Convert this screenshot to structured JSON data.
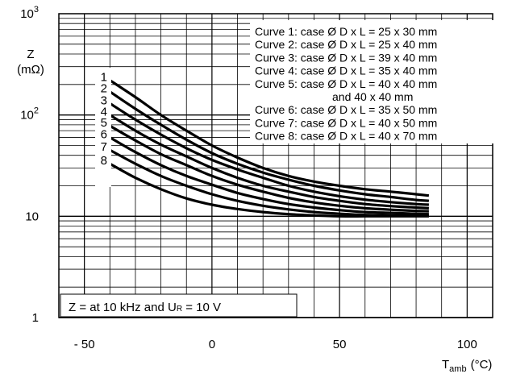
{
  "chart_data": {
    "type": "line",
    "ylabel": "Z",
    "ylabel_unit": "(mΩ)",
    "xlabel": "T",
    "xlabel_sub": "amb",
    "xlabel_unit": "(°C)",
    "y_scale": "log",
    "ylim": [
      1,
      1000
    ],
    "xlim": [
      -60,
      110
    ],
    "y_ticks": [
      {
        "value": 1,
        "base": "1",
        "exp": ""
      },
      {
        "value": 10,
        "base": "10",
        "exp": ""
      },
      {
        "value": 100,
        "base": "10",
        "exp": "2"
      },
      {
        "value": 1000,
        "base": "10",
        "exp": "3"
      }
    ],
    "x_ticks": [
      {
        "value": -50,
        "label": "- 50"
      },
      {
        "value": 0,
        "label": "0"
      },
      {
        "value": 50,
        "label": "50"
      },
      {
        "value": 100,
        "label": "100"
      }
    ],
    "grid": true,
    "x": [
      -40,
      -30,
      -20,
      -10,
      0,
      10,
      20,
      30,
      40,
      50,
      60,
      70,
      80,
      85
    ],
    "series": [
      {
        "name": "1",
        "values": [
          220,
          150,
          100,
          70,
          50,
          38,
          30,
          25,
          22,
          20,
          18.5,
          17.5,
          16.5,
          16
        ]
      },
      {
        "name": "2",
        "values": [
          170,
          115,
          80,
          57,
          42,
          33,
          27,
          23,
          20,
          18,
          16.5,
          15.5,
          14.5,
          14.2
        ]
      },
      {
        "name": "3",
        "values": [
          130,
          90,
          64,
          47,
          36,
          29,
          24,
          20,
          17.5,
          15.8,
          14.6,
          13.8,
          13.2,
          13
        ]
      },
      {
        "name": "4",
        "values": [
          100,
          70,
          51,
          39,
          30,
          24,
          20,
          17.5,
          15.5,
          14.2,
          13.2,
          12.6,
          12.2,
          12
        ]
      },
      {
        "name": "5",
        "values": [
          78,
          56,
          41,
          32,
          25,
          20.5,
          17.5,
          15.2,
          13.7,
          12.7,
          12,
          11.6,
          11.3,
          11.2
        ]
      },
      {
        "name": "6",
        "values": [
          60,
          43,
          32,
          25,
          20.5,
          17,
          14.8,
          13.2,
          12.2,
          11.5,
          11,
          10.8,
          10.6,
          10.5
        ]
      },
      {
        "name": "7",
        "values": [
          45,
          33,
          25,
          20,
          16.5,
          14.2,
          12.7,
          11.7,
          11,
          10.6,
          10.3,
          10.2,
          10.1,
          10.1
        ]
      },
      {
        "name": "8",
        "values": [
          33,
          24,
          18.5,
          15,
          13,
          11.8,
          11,
          10.5,
          10.2,
          10,
          10,
          10,
          10,
          10
        ]
      }
    ],
    "legend": {
      "position": "top-right",
      "lines": [
        "Curve 1: case Ø D x L = 25 x 30 mm",
        "Curve 2: case Ø D x L = 25 x 40 mm",
        "Curve 3: case Ø D x L = 39 x 40 mm",
        "Curve 4: case Ø D x L = 35 x 40 mm",
        "Curve 5: case Ø D x L = 40 x 40 mm",
        "and 40 x 40 mm",
        "Curve 6: case Ø D x L = 35 x 50 mm",
        "Curve 7: case Ø D x L = 40 x 50 mm",
        "Curve 8: case Ø D x L = 40 x 70 mm"
      ]
    },
    "annotation": {
      "prefix": "Z = at 10 kHz and U",
      "sub": "R",
      "suffix": " = 10 V"
    }
  }
}
